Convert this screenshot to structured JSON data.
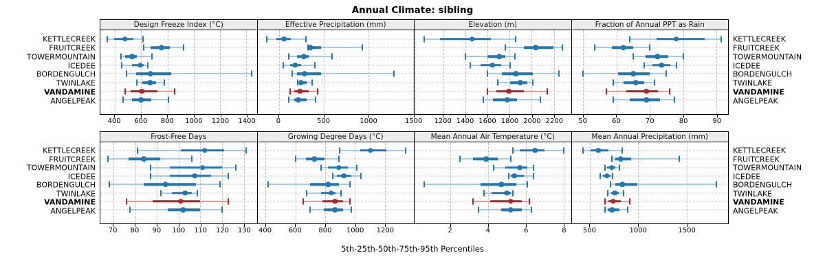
{
  "title": "Annual Climate: sibling",
  "footer": "5th-25th-50th-75th-95th Percentiles",
  "sites": [
    "KETTLECREEK",
    "FRUITCREEK",
    "TOWERMOUNTAIN",
    "ICEDEE",
    "BORDENGULCH",
    "TWINLAKE",
    "VANDAMINE",
    "ANGELPEAK"
  ],
  "highlight_site": "VANDAMINE",
  "percentile_levels": [
    "5th",
    "25th",
    "50th",
    "75th",
    "95th"
  ],
  "colors": {
    "series_blue": "#1F77B4",
    "series_blue_light": "#A3C9E4",
    "highlight_red": "#B22222",
    "highlight_red_light": "#DFA09A",
    "strip_bg": "#ECECEC",
    "grid": "#B4B4B4",
    "border": "#000000"
  },
  "chart_data": [
    {
      "type": "scatter",
      "subtype": "percentile-range-dotplot",
      "row": 0,
      "title": "Design Freeze Index (°C)",
      "xlim": [
        290,
        1480
      ],
      "xticks": [
        400,
        600,
        800,
        1000,
        1200,
        1400
      ],
      "grid": true,
      "values": {
        "KETTLECREEK": [
          340,
          395,
          476,
          540,
          615
        ],
        "FRUITCREEK": [
          620,
          670,
          753,
          817,
          925
        ],
        "TOWERMOUNTAIN": [
          445,
          480,
          531,
          566,
          684
        ],
        "ICEDEE": [
          454,
          531,
          592,
          618,
          649
        ],
        "BORDENGULCH": [
          490,
          560,
          670,
          830,
          1440
        ],
        "TWINLAKE": [
          565,
          608,
          667,
          712,
          776
        ],
        "VANDAMINE": [
          480,
          520,
          605,
          725,
          855
        ],
        "ANGELPEAK": [
          462,
          528,
          601,
          675,
          806
        ]
      }
    },
    {
      "type": "scatter",
      "subtype": "percentile-range-dotplot",
      "row": 0,
      "title": "Effective Precipitation (mm)",
      "xlim": [
        -240,
        1510
      ],
      "xticks": [
        0,
        500,
        1000,
        1500
      ],
      "grid": true,
      "values": {
        "KETTLECREEK": [
          -135,
          -30,
          60,
          135,
          305
        ],
        "FRUITCREEK": [
          325,
          345,
          356,
          470,
          935
        ],
        "TOWERMOUNTAIN": [
          111,
          205,
          276,
          335,
          595
        ],
        "ICEDEE": [
          47,
          123,
          182,
          252,
          401
        ],
        "BORDENGULCH": [
          150,
          205,
          285,
          475,
          1290
        ],
        "TWINLAKE": [
          210,
          230,
          248,
          310,
          368
        ],
        "VANDAMINE": [
          125,
          170,
          235,
          335,
          430
        ],
        "ANGELPEAK": [
          111,
          170,
          217,
          311,
          410
        ]
      }
    },
    {
      "type": "scatter",
      "subtype": "percentile-range-dotplot",
      "row": 0,
      "title": "Elevation (m)",
      "xlim": [
        940,
        2355
      ],
      "xticks": [
        1200,
        1400,
        1600,
        1800,
        2000,
        2200
      ],
      "grid": true,
      "values": {
        "KETTLECREEK": [
          1030,
          1170,
          1462,
          1630,
          1856
        ],
        "FRUITCREEK": [
          1764,
          1927,
          2036,
          2194,
          2276
        ],
        "TOWERMOUNTAIN": [
          1400,
          1600,
          1708,
          1763,
          1850
        ],
        "ICEDEE": [
          1446,
          1538,
          1645,
          1722,
          1804
        ],
        "BORDENGULCH": [
          1600,
          1733,
          1856,
          2010,
          2245
        ],
        "TWINLAKE": [
          1692,
          1805,
          1897,
          1958,
          2010
        ],
        "VANDAMINE": [
          1600,
          1682,
          1794,
          1927,
          2143
        ],
        "ANGELPEAK": [
          1559,
          1651,
          1778,
          1866,
          2081
        ]
      }
    },
    {
      "type": "scatter",
      "subtype": "percentile-range-dotplot",
      "row": 0,
      "title": "Fraction of Annual PPT as Rain",
      "xlim": [
        46.5,
        93.5
      ],
      "xticks": [
        50,
        60,
        70,
        80,
        90
      ],
      "grid": true,
      "values": {
        "KETTLECREEK": [
          64,
          72,
          78,
          86.5,
          91.5
        ],
        "FRUITCREEK": [
          53.5,
          58.5,
          62,
          65,
          70
        ],
        "TOWERMOUNTAIN": [
          65,
          68.7,
          72.3,
          75.5,
          80
        ],
        "ICEDEE": [
          68.2,
          70.8,
          73.5,
          76.2,
          78
        ],
        "BORDENGULCH": [
          50,
          60.5,
          65,
          70,
          75
        ],
        "TWINLAKE": [
          59,
          62.2,
          65.8,
          68.4,
          71.3
        ],
        "VANDAMINE": [
          57,
          63,
          69,
          72.5,
          76
        ],
        "ANGELPEAK": [
          59,
          64,
          69,
          73,
          77.3
        ]
      }
    },
    {
      "type": "scatter",
      "subtype": "percentile-range-dotplot",
      "row": 1,
      "title": "Frost-Free Days",
      "xlim": [
        64,
        136
      ],
      "xticks": [
        70,
        80,
        90,
        100,
        110,
        120,
        130
      ],
      "grid": true,
      "values": {
        "KETTLECREEK": [
          81,
          101,
          112,
          121,
          131
        ],
        "FRUITCREEK": [
          67.5,
          77,
          84,
          91.5,
          106
        ],
        "TOWERMOUNTAIN": [
          87,
          96,
          111,
          120,
          126.5
        ],
        "ICEDEE": [
          87,
          96,
          107.5,
          115,
          123
        ],
        "BORDENGULCH": [
          68,
          84,
          94,
          108,
          119
        ],
        "TWINLAKE": [
          92,
          97,
          103,
          106,
          108.5
        ],
        "VANDAMINE": [
          76,
          88,
          101,
          110,
          123
        ],
        "ANGELPEAK": [
          77.5,
          95,
          102,
          110,
          120
        ]
      }
    },
    {
      "type": "scatter",
      "subtype": "percentile-range-dotplot",
      "row": 1,
      "title": "Growing Degree Days (°C)",
      "xlim": [
        345,
        1395
      ],
      "xticks": [
        400,
        600,
        800,
        1000,
        1200
      ],
      "grid": true,
      "values": {
        "KETTLECREEK": [
          895,
          1034,
          1103,
          1211,
          1339
        ],
        "FRUITCREEK": [
          602,
          671,
          728,
          795,
          890
        ],
        "TOWERMOUNTAIN": [
          770,
          820,
          890,
          950,
          1010
        ],
        "ICEDEE": [
          850,
          880,
          925,
          975,
          1040
        ],
        "BORDENGULCH": [
          415,
          700,
          820,
          890,
          965
        ],
        "TWINLAKE": [
          675,
          770,
          840,
          870,
          905
        ],
        "VANDAMINE": [
          650,
          780,
          865,
          920,
          965
        ],
        "ANGELPEAK": [
          700,
          790,
          865,
          920,
          975
        ]
      }
    },
    {
      "type": "scatter",
      "subtype": "percentile-range-dotplot",
      "row": 1,
      "title": "Mean Annual Air Temperature (°C)",
      "xlim": [
        0.1,
        8.4
      ],
      "xticks": [
        2,
        4,
        6,
        8
      ],
      "grid": true,
      "values": {
        "KETTLECREEK": [
          5.3,
          5.7,
          6.5,
          7.0,
          8.0
        ],
        "FRUITCREEK": [
          2.5,
          3.2,
          3.9,
          4.5,
          5.2
        ],
        "TOWERMOUNTAIN": [
          4.3,
          4.9,
          5.7,
          6.1,
          6.4
        ],
        "ICEDEE": [
          5.1,
          5.2,
          5.4,
          5.9,
          6.4
        ],
        "BORDENGULCH": [
          0.6,
          3.6,
          4.7,
          5.5,
          6.1
        ],
        "TWINLAKE": [
          3.8,
          4.2,
          5.0,
          5.2,
          5.3
        ],
        "VANDAMINE": [
          3.2,
          4.1,
          5.2,
          5.8,
          6.2
        ],
        "ANGELPEAK": [
          3.5,
          4.7,
          5.2,
          5.8,
          6.3
        ]
      }
    },
    {
      "type": "scatter",
      "subtype": "percentile-range-dotplot",
      "row": 1,
      "title": "Mean Annual Precipitation (mm)",
      "xlim": [
        310,
        1930
      ],
      "xticks": [
        500,
        1000,
        1500
      ],
      "grid": true,
      "values": {
        "KETTLECREEK": [
          430,
          505,
          587,
          693,
          834
        ],
        "FRUITCREEK": [
          724,
          764,
          818,
          928,
          1422
        ],
        "TOWERMOUNTAIN": [
          653,
          676,
          724,
          764,
          806
        ],
        "ICEDEE": [
          606,
          634,
          676,
          709,
          735
        ],
        "BORDENGULCH": [
          709,
          764,
          834,
          987,
          1806
        ],
        "TWINLAKE": [
          686,
          716,
          756,
          799,
          851
        ],
        "VANDAMINE": [
          658,
          693,
          740,
          822,
          912
        ],
        "ANGELPEAK": [
          653,
          686,
          728,
          804,
          888
        ]
      }
    }
  ]
}
